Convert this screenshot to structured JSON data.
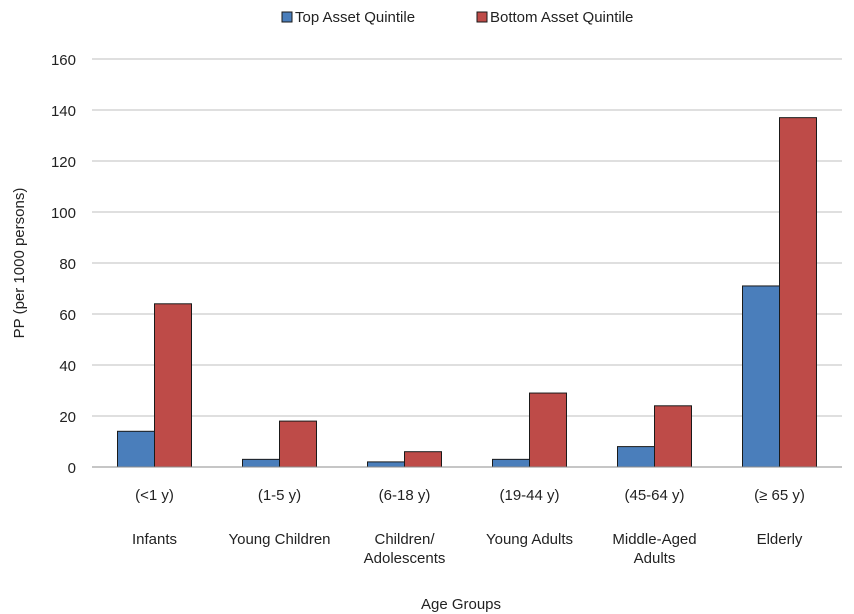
{
  "chart_data": {
    "type": "bar",
    "title": "",
    "xlabel": "Age Groups",
    "ylabel": "PP (per 1000 persons)",
    "ylim": [
      0,
      160
    ],
    "yticks": [
      0,
      20,
      40,
      60,
      80,
      100,
      120,
      140,
      160
    ],
    "grid": true,
    "legend_position": "top",
    "categories": [
      {
        "range": "(<1 y)",
        "name_lines": [
          "Infants"
        ]
      },
      {
        "range": "(1-5 y)",
        "name_lines": [
          "Young Children"
        ]
      },
      {
        "range": "(6-18 y)",
        "name_lines": [
          "Children/",
          "Adolescents"
        ]
      },
      {
        "range": "(19-44 y)",
        "name_lines": [
          "Young Adults"
        ]
      },
      {
        "range": "(45-64 y)",
        "name_lines": [
          "Middle-Aged",
          "Adults"
        ]
      },
      {
        "range": "(≥ 65 y)",
        "name_lines": [
          "Elderly"
        ]
      }
    ],
    "series": [
      {
        "name": "Top Asset Quintile",
        "color": "#4a7ebb",
        "values": [
          14,
          3,
          2,
          3,
          8,
          71
        ]
      },
      {
        "name": "Bottom Asset Quintile",
        "color": "#be4b48",
        "values": [
          64,
          18,
          6,
          29,
          24,
          137
        ]
      }
    ]
  }
}
